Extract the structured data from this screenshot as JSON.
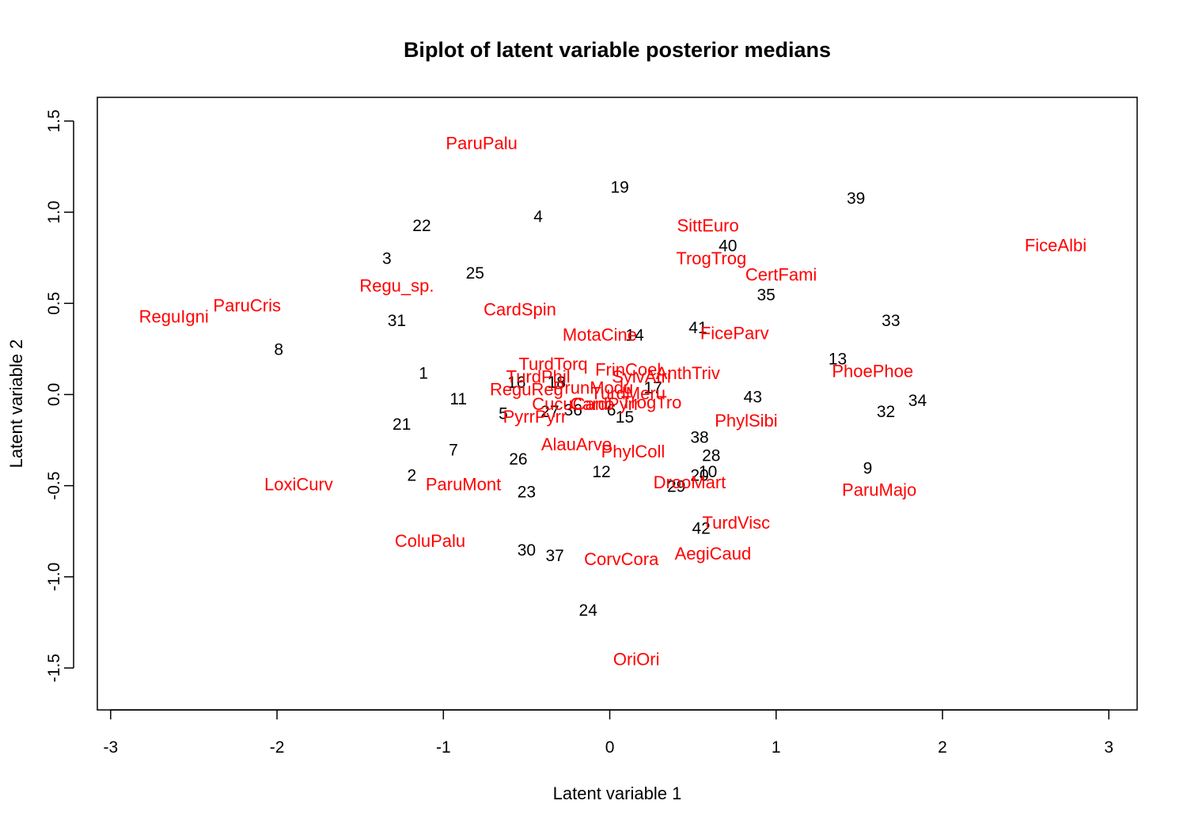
{
  "chart_data": {
    "type": "scatter",
    "title": "Biplot of latent variable posterior medians",
    "xlabel": "Latent variable 1",
    "ylabel": "Latent variable 2",
    "xlim": [
      -3.08,
      3.17
    ],
    "ylim": [
      -1.73,
      1.63
    ],
    "xticks": [
      -3,
      -2,
      -1,
      0,
      1,
      2,
      3
    ],
    "yticks": [
      -1.5,
      -1.0,
      -0.5,
      0.0,
      0.5,
      1.0,
      1.5
    ],
    "xtick_labels": [
      "-3",
      "-2",
      "-1",
      "0",
      "1",
      "2",
      "3"
    ],
    "ytick_labels": [
      "-1.5",
      "-1.0",
      "-0.5",
      "0.0",
      "0.5",
      "1.0",
      "1.5"
    ],
    "grid": false,
    "legend": "none",
    "colors": {
      "sites": "#000000",
      "species": "#ff0000",
      "frame": "#000000"
    },
    "series": [
      {
        "name": "sites",
        "points": [
          {
            "label": "1",
            "x": -1.12,
            "y": 0.11
          },
          {
            "label": "2",
            "x": -1.19,
            "y": -0.45
          },
          {
            "label": "3",
            "x": -1.34,
            "y": 0.74
          },
          {
            "label": "4",
            "x": -0.43,
            "y": 0.97
          },
          {
            "label": "5",
            "x": -0.64,
            "y": -0.11
          },
          {
            "label": "6",
            "x": 0.01,
            "y": -0.09
          },
          {
            "label": "7",
            "x": -0.94,
            "y": -0.31
          },
          {
            "label": "8",
            "x": -1.99,
            "y": 0.24
          },
          {
            "label": "9",
            "x": 1.55,
            "y": -0.41
          },
          {
            "label": "10",
            "x": 0.59,
            "y": -0.43
          },
          {
            "label": "11",
            "x": -0.91,
            "y": -0.03
          },
          {
            "label": "12",
            "x": -0.05,
            "y": -0.43
          },
          {
            "label": "13",
            "x": 1.37,
            "y": 0.19
          },
          {
            "label": "14",
            "x": 0.15,
            "y": 0.32
          },
          {
            "label": "15",
            "x": 0.09,
            "y": -0.13
          },
          {
            "label": "16",
            "x": -0.56,
            "y": 0.06
          },
          {
            "label": "17",
            "x": 0.26,
            "y": 0.03
          },
          {
            "label": "18",
            "x": -0.32,
            "y": 0.06
          },
          {
            "label": "19",
            "x": 0.06,
            "y": 1.13
          },
          {
            "label": "20",
            "x": 0.54,
            "y": -0.45
          },
          {
            "label": "21",
            "x": -1.25,
            "y": -0.17
          },
          {
            "label": "22",
            "x": -1.13,
            "y": 0.92
          },
          {
            "label": "23",
            "x": -0.5,
            "y": -0.54
          },
          {
            "label": "24",
            "x": -0.13,
            "y": -1.19
          },
          {
            "label": "25",
            "x": -0.81,
            "y": 0.66
          },
          {
            "label": "26",
            "x": -0.55,
            "y": -0.36
          },
          {
            "label": "27",
            "x": -0.36,
            "y": -0.1
          },
          {
            "label": "28",
            "x": 0.61,
            "y": -0.34
          },
          {
            "label": "29",
            "x": 0.4,
            "y": -0.51
          },
          {
            "label": "30",
            "x": -0.5,
            "y": -0.86
          },
          {
            "label": "31",
            "x": -1.28,
            "y": 0.4
          },
          {
            "label": "32",
            "x": 1.66,
            "y": -0.1
          },
          {
            "label": "33",
            "x": 1.69,
            "y": 0.4
          },
          {
            "label": "34",
            "x": 1.85,
            "y": -0.04
          },
          {
            "label": "35",
            "x": 0.94,
            "y": 0.54
          },
          {
            "label": "36",
            "x": -0.22,
            "y": -0.09
          },
          {
            "label": "37",
            "x": -0.33,
            "y": -0.89
          },
          {
            "label": "38",
            "x": 0.54,
            "y": -0.24
          },
          {
            "label": "39",
            "x": 1.48,
            "y": 1.07
          },
          {
            "label": "40",
            "x": 0.71,
            "y": 0.81
          },
          {
            "label": "41",
            "x": 0.53,
            "y": 0.36
          },
          {
            "label": "42",
            "x": 0.55,
            "y": -0.74
          },
          {
            "label": "43",
            "x": 0.86,
            "y": -0.02
          }
        ]
      },
      {
        "name": "species",
        "points": [
          {
            "label": "ParuPalu",
            "x": -0.77,
            "y": 1.37
          },
          {
            "label": "SittEuro",
            "x": 0.59,
            "y": 0.92
          },
          {
            "label": "FiceAlbi",
            "x": 2.68,
            "y": 0.81
          },
          {
            "label": "TrogTrog",
            "x": 0.61,
            "y": 0.74
          },
          {
            "label": "CertFami",
            "x": 1.03,
            "y": 0.65
          },
          {
            "label": "Regu_sp.",
            "x": -1.28,
            "y": 0.59
          },
          {
            "label": "ParuCris",
            "x": -2.18,
            "y": 0.48
          },
          {
            "label": "CardSpin",
            "x": -0.54,
            "y": 0.46
          },
          {
            "label": "ReguIgni",
            "x": -2.62,
            "y": 0.42
          },
          {
            "label": "MotaCine",
            "x": -0.06,
            "y": 0.32
          },
          {
            "label": "FiceParv",
            "x": 0.75,
            "y": 0.33
          },
          {
            "label": "TurdTorq",
            "x": -0.34,
            "y": 0.16
          },
          {
            "label": "FrinCoel",
            "x": 0.11,
            "y": 0.13
          },
          {
            "label": "AnthTriv",
            "x": 0.47,
            "y": 0.11
          },
          {
            "label": "PhoePhoe",
            "x": 1.58,
            "y": 0.12
          },
          {
            "label": "TurdPhil",
            "x": -0.43,
            "y": 0.09
          },
          {
            "label": "SylvAtri",
            "x": 0.19,
            "y": 0.09
          },
          {
            "label": "PrunModu",
            "x": -0.1,
            "y": 0.03
          },
          {
            "label": "ReguReg",
            "x": -0.5,
            "y": 0.02
          },
          {
            "label": "PhylSibi",
            "x": 0.82,
            "y": -0.15
          },
          {
            "label": "TurdMeru",
            "x": 0.11,
            "y": 0.0
          },
          {
            "label": "CucuCano",
            "x": -0.22,
            "y": -0.06
          },
          {
            "label": "CardPyrr",
            "x": -0.03,
            "y": -0.06
          },
          {
            "label": "TrogTro",
            "x": 0.25,
            "y": -0.05
          },
          {
            "label": "PyrrPyrr",
            "x": -0.45,
            "y": -0.13
          },
          {
            "label": "AlauArve",
            "x": -0.2,
            "y": -0.28
          },
          {
            "label": "PhylColl",
            "x": 0.14,
            "y": -0.32
          },
          {
            "label": "LoxiCurv",
            "x": -1.87,
            "y": -0.5
          },
          {
            "label": "ParuMont",
            "x": -0.88,
            "y": -0.5
          },
          {
            "label": "DrooMart",
            "x": 0.48,
            "y": -0.49
          },
          {
            "label": "ParuMajo",
            "x": 1.62,
            "y": -0.53
          },
          {
            "label": "TurdVisc",
            "x": 0.76,
            "y": -0.71
          },
          {
            "label": "ColuPalu",
            "x": -1.08,
            "y": -0.81
          },
          {
            "label": "AegiCaud",
            "x": 0.62,
            "y": -0.88
          },
          {
            "label": "CorvCora",
            "x": 0.07,
            "y": -0.91
          },
          {
            "label": "OriOri",
            "x": 0.16,
            "y": -1.46
          }
        ]
      }
    ]
  }
}
